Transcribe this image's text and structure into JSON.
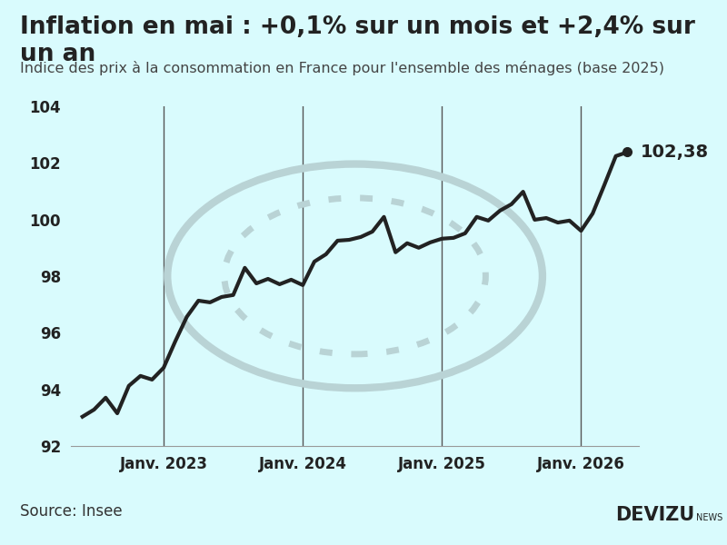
{
  "chart_data": {
    "type": "line",
    "title": "Inflation en mai : +0,1% sur un mois et +2,4% sur un an",
    "subtitle": "Indice des prix à la consommation en France pour l'ensemble des ménages (base 2025)",
    "source": "Source: Insee",
    "brand": "DEVIZU",
    "brand_suffix": "NEWS",
    "x": [
      "2022-06",
      "2022-07",
      "2022-08",
      "2022-09",
      "2022-10",
      "2022-11",
      "2022-12",
      "2023-01",
      "2023-02",
      "2023-03",
      "2023-04",
      "2023-05",
      "2023-06",
      "2023-07",
      "2023-08",
      "2023-09",
      "2023-10",
      "2023-11",
      "2023-12",
      "2024-01",
      "2024-02",
      "2024-03",
      "2024-04",
      "2024-05",
      "2024-06",
      "2024-07",
      "2024-08",
      "2024-09",
      "2024-10",
      "2024-11",
      "2024-12",
      "2025-01",
      "2025-02",
      "2025-03",
      "2025-04",
      "2025-05",
      "2025-06",
      "2025-07",
      "2025-08",
      "2025-09",
      "2025-10",
      "2025-11",
      "2025-12",
      "2026-01",
      "2026-02",
      "2026-03",
      "2026-04",
      "2026-05"
    ],
    "values": [
      93.03,
      93.28,
      93.7,
      93.15,
      94.12,
      94.47,
      94.34,
      94.76,
      95.69,
      96.56,
      97.13,
      97.07,
      97.26,
      97.33,
      98.29,
      97.74,
      97.9,
      97.71,
      97.87,
      97.68,
      98.51,
      98.77,
      99.25,
      99.28,
      99.38,
      99.57,
      100.09,
      98.84,
      99.16,
      99.0,
      99.19,
      99.32,
      99.35,
      99.51,
      100.09,
      99.96,
      100.31,
      100.54,
      100.98,
      99.99,
      100.05,
      99.89,
      99.96,
      99.6,
      100.21,
      101.21,
      102.24,
      102.38
    ],
    "color": "#222222",
    "xlim": [
      "2022-05",
      "2026-06"
    ],
    "xticks": [
      {
        "value": "2023-01",
        "label": "Janv. 2023"
      },
      {
        "value": "2024-01",
        "label": "Janv. 2024"
      },
      {
        "value": "2025-01",
        "label": "Janv. 2025"
      },
      {
        "value": "2026-01",
        "label": "Janv. 2026"
      }
    ],
    "ylim": [
      92,
      104
    ],
    "yticks": [
      92,
      94,
      96,
      98,
      100,
      102,
      104
    ],
    "grid": "x",
    "annotations": [
      {
        "x": "2026-05",
        "y": 102.38,
        "text": "102,38"
      }
    ]
  }
}
